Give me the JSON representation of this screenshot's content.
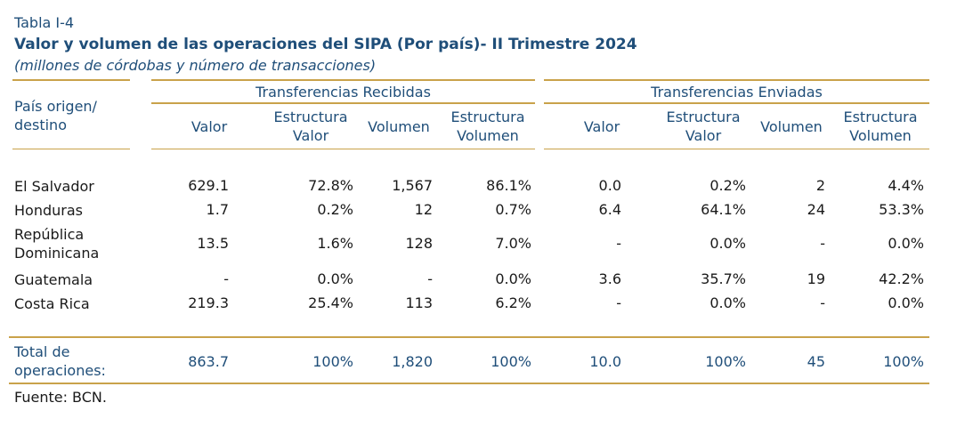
{
  "table_label": "Tabla I-4",
  "title": "Valor y volumen de las operaciones del SIPA (Por país)- II Trimestre 2024",
  "subtitle": "(millones de córdobas y número de transacciones)",
  "header": {
    "country_col": "País origen/\ndestino",
    "group_received": "Transferencias Recibidas",
    "group_sent": "Transferencias Enviadas",
    "columns": [
      "Valor",
      "Estructura\nValor",
      "Volumen",
      "Estructura\nVolumen",
      "Valor",
      "Estructura\nValor",
      "Volumen",
      "Estructura\nVolumen"
    ]
  },
  "rows": [
    {
      "country": "El Salvador",
      "values": [
        "629.1",
        "72.8%",
        "1,567",
        "86.1%",
        "0.0",
        "0.2%",
        "2",
        "4.4%"
      ]
    },
    {
      "country": "Honduras",
      "values": [
        "1.7",
        "0.2%",
        "12",
        "0.7%",
        "6.4",
        "64.1%",
        "24",
        "53.3%"
      ]
    },
    {
      "country": "República\nDominicana",
      "values": [
        "13.5",
        "1.6%",
        "128",
        "7.0%",
        "-",
        "0.0%",
        "-",
        "0.0%"
      ]
    },
    {
      "country": "Guatemala",
      "values": [
        "-",
        "0.0%",
        "-",
        "0.0%",
        "3.6",
        "35.7%",
        "19",
        "42.2%"
      ]
    },
    {
      "country": "Costa Rica",
      "values": [
        "219.3",
        "25.4%",
        "113",
        "6.2%",
        "-",
        "0.0%",
        "-",
        "0.0%"
      ]
    }
  ],
  "total": {
    "label": "Total de\noperaciones:",
    "values": [
      "863.7",
      "100%",
      "1,820",
      "100%",
      "10.0",
      "100%",
      "45",
      "100%"
    ]
  },
  "source": "Fuente: BCN."
}
